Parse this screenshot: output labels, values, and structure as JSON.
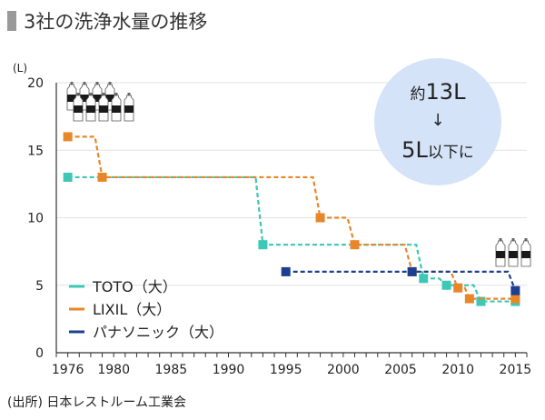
{
  "title": "3社の洗浄水量の推移",
  "source": "(出所) 日本レストルーム工業会",
  "callout": {
    "line1_prefix": "約",
    "line1_value": "13L",
    "arrow": "↓",
    "line2_value": "5L",
    "line2_suffix": "以下に",
    "fill": "#d4e3f7"
  },
  "chart_data": {
    "type": "line",
    "step": true,
    "ylabel": "(L)",
    "xlabel": "",
    "xlim": [
      1975,
      2016
    ],
    "ylim": [
      0,
      20
    ],
    "x_ticks": [
      1976,
      1980,
      1985,
      1990,
      1995,
      2000,
      2005,
      2010,
      2015
    ],
    "y_ticks": [
      0,
      5,
      10,
      15,
      20
    ],
    "legend_position": "bottom-left",
    "series": [
      {
        "name": "TOTO（大）",
        "color": "#3cc8b4",
        "points": [
          [
            1976,
            13
          ],
          [
            1993,
            8
          ],
          [
            2007,
            5.5
          ],
          [
            2009,
            5
          ],
          [
            2012,
            3.8
          ],
          [
            2015,
            3.8
          ]
        ]
      },
      {
        "name": "LIXIL（大）",
        "color": "#e8862a",
        "points": [
          [
            1976,
            16
          ],
          [
            1979,
            13
          ],
          [
            1998,
            10
          ],
          [
            2001,
            8
          ],
          [
            2006,
            6
          ],
          [
            2010,
            4.8
          ],
          [
            2011,
            4
          ],
          [
            2015,
            4
          ]
        ]
      },
      {
        "name": "パナソニック（大）",
        "color": "#1d3f8f",
        "points": [
          [
            1995,
            6
          ],
          [
            2006,
            6
          ],
          [
            2015,
            4.6
          ]
        ]
      }
    ],
    "icons": [
      {
        "name": "bottles-13-icon",
        "count": 13
      },
      {
        "name": "bottles-4-icon",
        "count": 4
      }
    ]
  }
}
